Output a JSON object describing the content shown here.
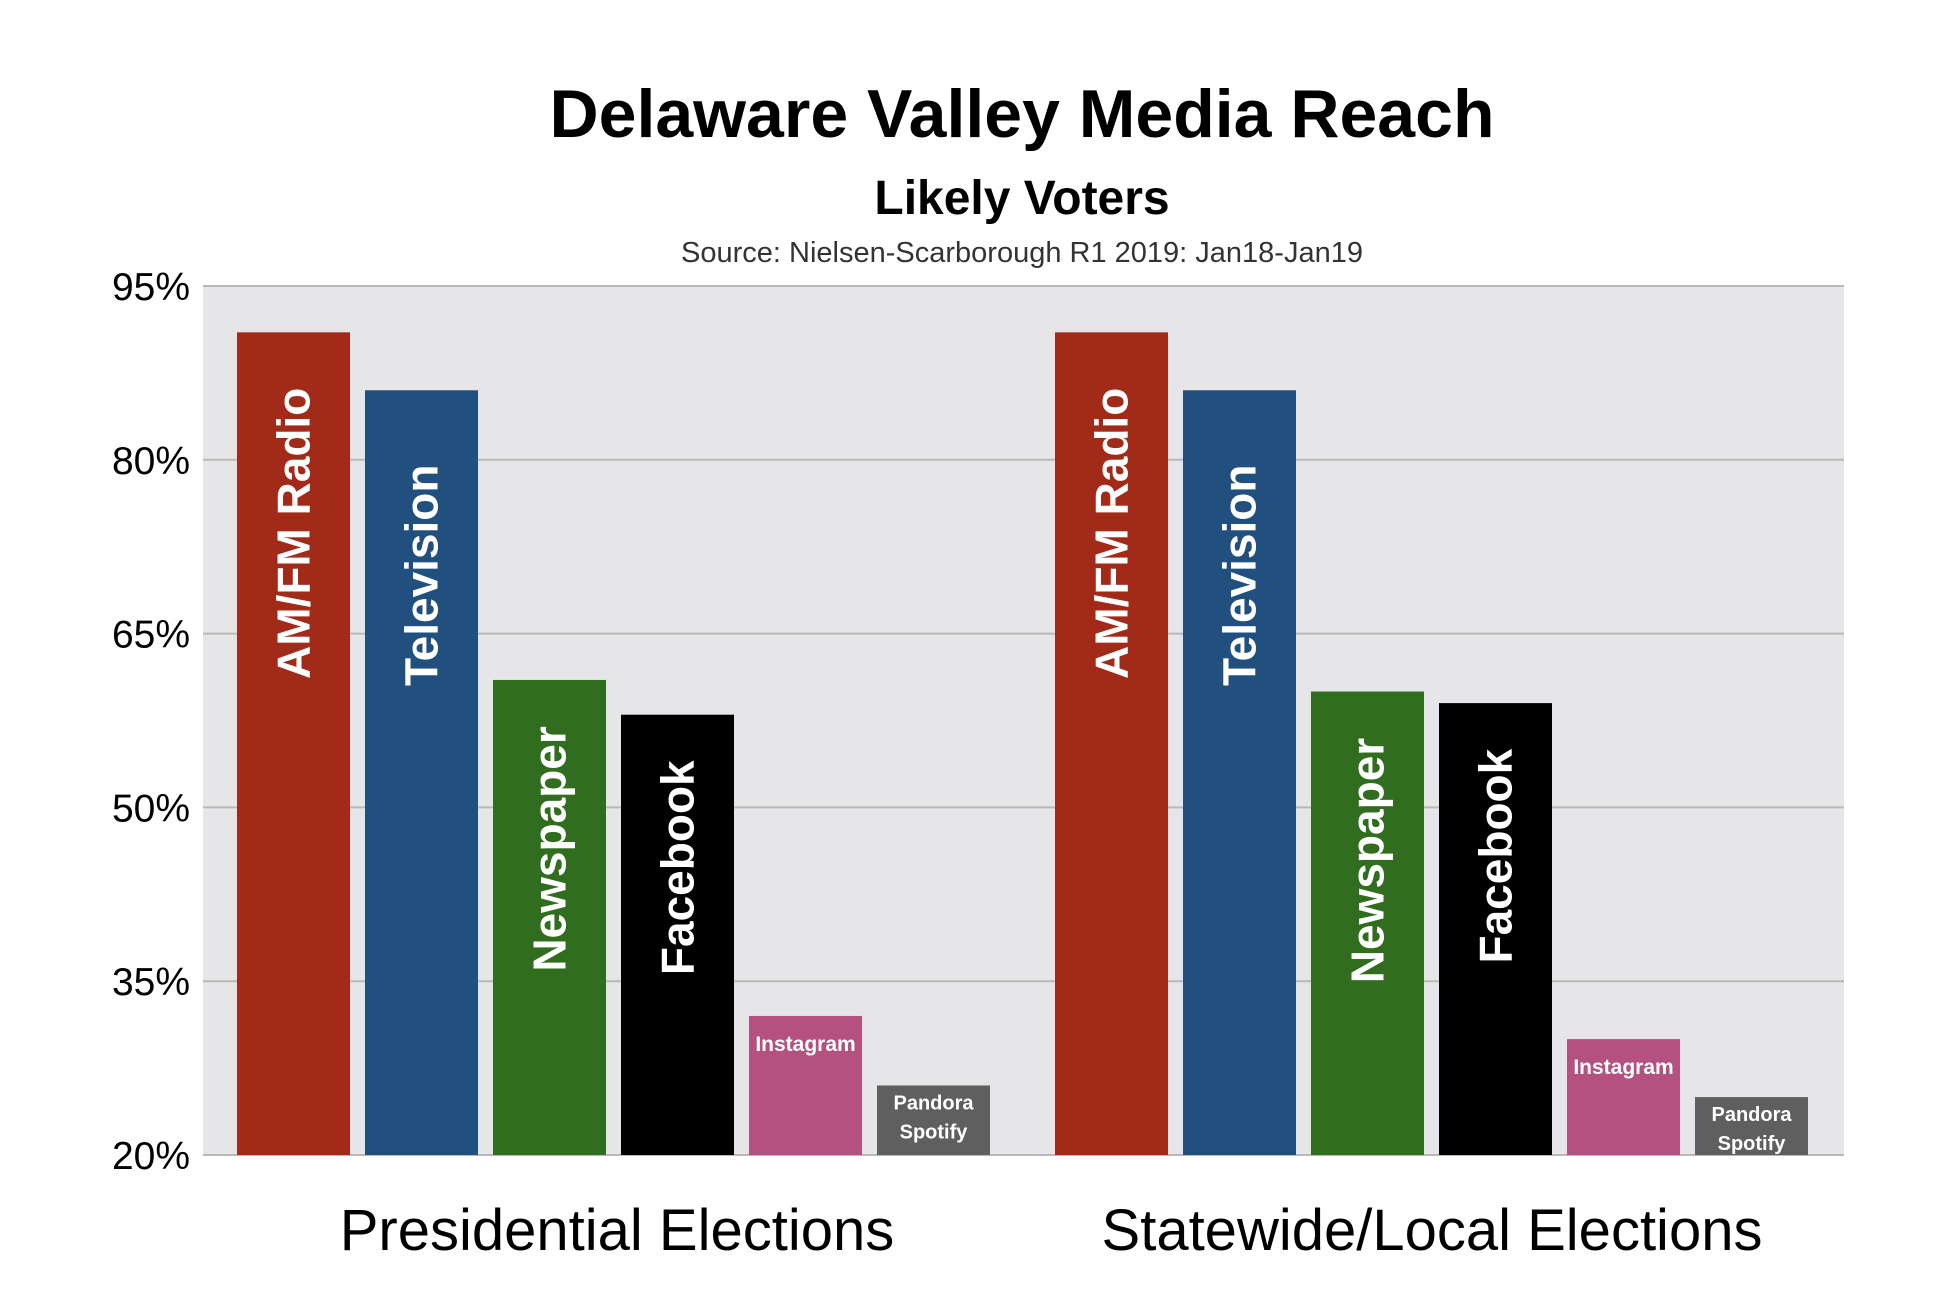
{
  "chart_data": {
    "type": "bar",
    "title": "Delaware Valley Media Reach",
    "subtitle": "Likely Voters",
    "source": "Source: Nielsen-Scarborough R1 2019: Jan18-Jan19",
    "categories": [
      "Presidential Elections",
      "Statewide/Local Elections"
    ],
    "series": [
      {
        "name": "AM/FM Radio",
        "label_lines": [
          "AM/FM Radio"
        ],
        "color": "#A22A19",
        "label_style": "vertical",
        "values": [
          91,
          91
        ]
      },
      {
        "name": "Television",
        "label_lines": [
          "Television"
        ],
        "color": "#214F7E",
        "label_style": "vertical",
        "values": [
          86,
          86
        ]
      },
      {
        "name": "Newspaper",
        "label_lines": [
          "Newspaper"
        ],
        "color": "#316D1F",
        "label_style": "vertical",
        "values": [
          61,
          60
        ]
      },
      {
        "name": "Facebook",
        "label_lines": [
          "Facebook"
        ],
        "color": "#000000",
        "label_style": "vertical",
        "values": [
          58,
          59
        ]
      },
      {
        "name": "Instagram",
        "label_lines": [
          "Instagram"
        ],
        "color": "#B45180",
        "label_style": "horizontal",
        "values": [
          32,
          30
        ]
      },
      {
        "name": "Pandora Spotify",
        "label_lines": [
          "Pandora",
          "Spotify"
        ],
        "color": "#5F5F5F",
        "label_style": "horizontal",
        "values": [
          26,
          25
        ]
      }
    ],
    "yticks": [
      95,
      80,
      65,
      50,
      35,
      20
    ],
    "ytick_labels": [
      "95%",
      "80%",
      "65%",
      "50%",
      "35%",
      "20%"
    ],
    "ylim": [
      20,
      95
    ],
    "grid": true,
    "plot_background": "#E6E5E8",
    "grid_color": "#B9B9B9"
  }
}
